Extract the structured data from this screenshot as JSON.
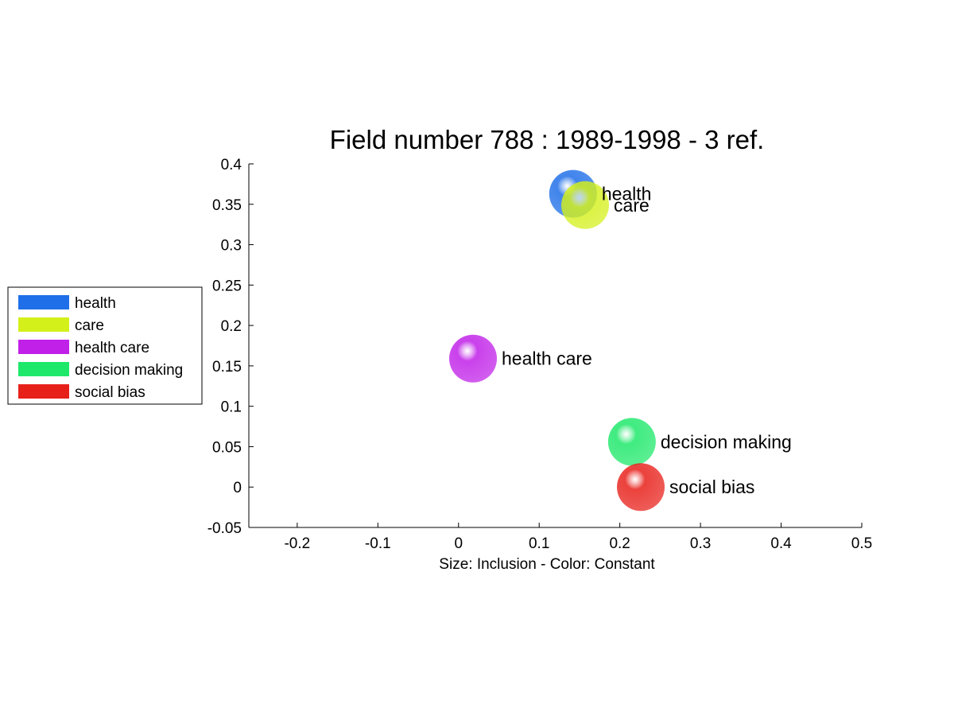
{
  "chart_data": {
    "type": "scatter",
    "title": "Field number 788 : 1989-1998  - 3 ref.",
    "xlabel": "Size: Inclusion - Color: Constant",
    "ylabel": "",
    "xlim": [
      -0.26,
      0.5
    ],
    "ylim": [
      -0.05,
      0.4
    ],
    "xticks": [
      -0.2,
      -0.1,
      0,
      0.1,
      0.2,
      0.3,
      0.4,
      0.5
    ],
    "xtick_labels": [
      "-0.2",
      "-0.1",
      "0",
      "0.1",
      "0.2",
      "0.3",
      "0.4",
      "0.5"
    ],
    "yticks": [
      -0.05,
      0,
      0.05,
      0.1,
      0.15,
      0.2,
      0.25,
      0.3,
      0.35,
      0.4
    ],
    "ytick_labels": [
      "-0.05",
      "0",
      "0.05",
      "0.1",
      "0.15",
      "0.2",
      "0.25",
      "0.3",
      "0.35",
      "0.4"
    ],
    "grid": false,
    "legend_position": "left",
    "series": [
      {
        "name": "health",
        "x": 0.142,
        "y": 0.363,
        "color": "#1f6fe8"
      },
      {
        "name": "care",
        "x": 0.157,
        "y": 0.349,
        "color": "#d4f01a"
      },
      {
        "name": "health care",
        "x": 0.018,
        "y": 0.159,
        "color": "#c020e8"
      },
      {
        "name": "decision making",
        "x": 0.215,
        "y": 0.056,
        "color": "#1ee86a"
      },
      {
        "name": "social bias",
        "x": 0.226,
        "y": 0.0,
        "color": "#e8201a"
      }
    ]
  }
}
